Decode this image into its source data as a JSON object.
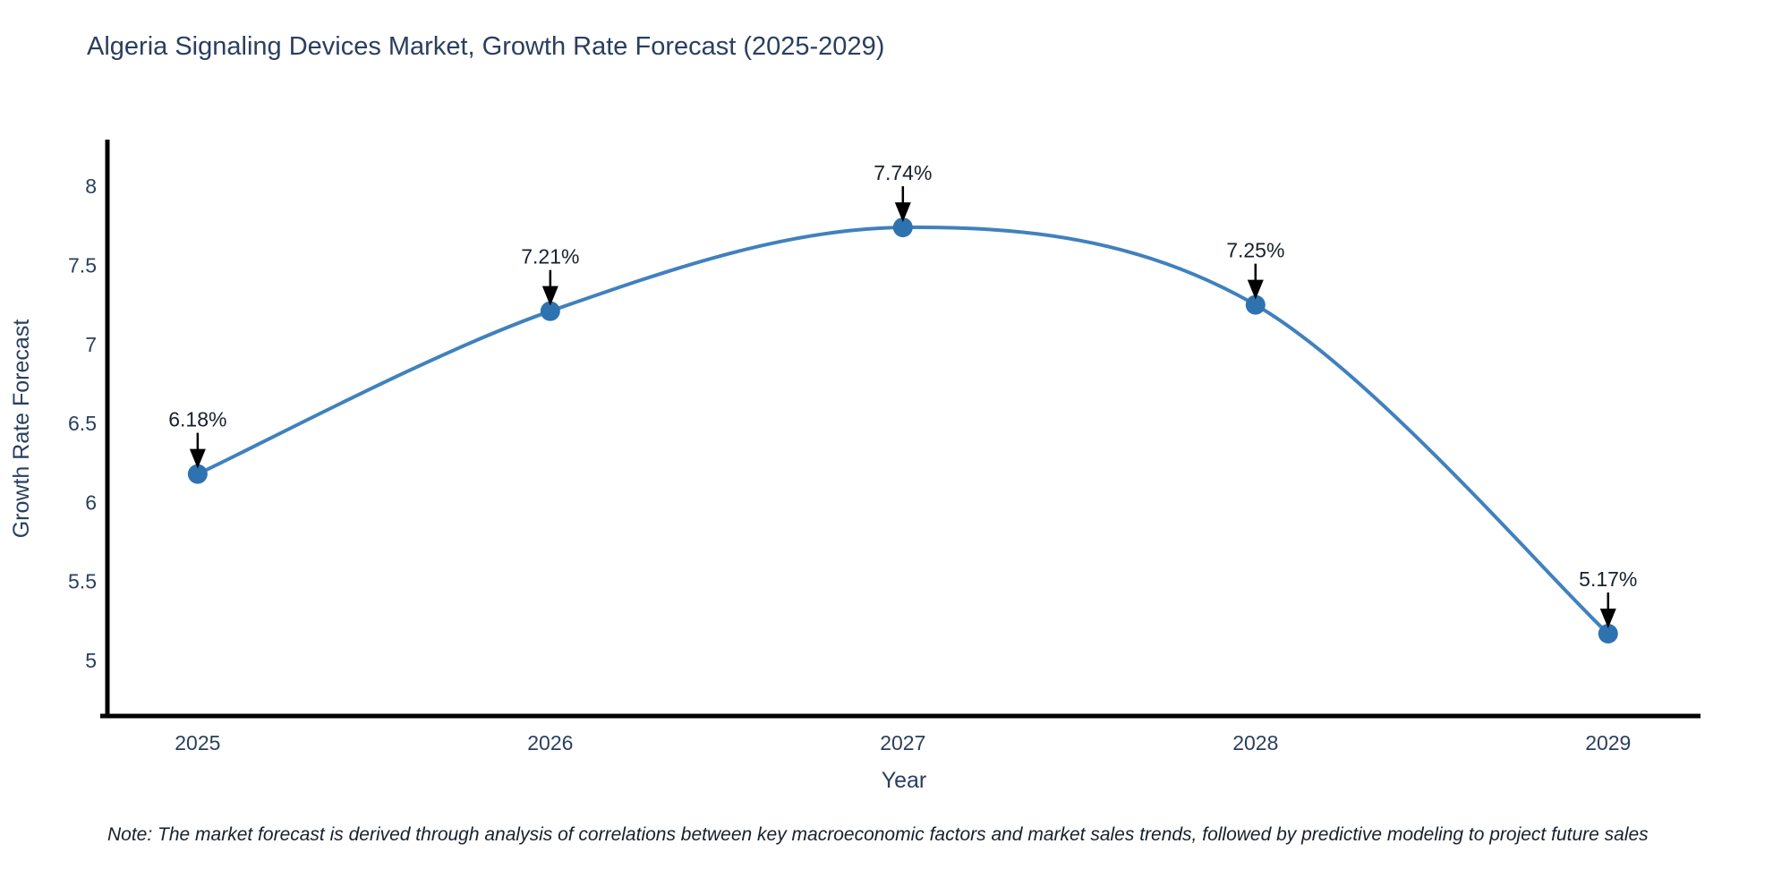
{
  "chart_data": {
    "type": "line",
    "title": "Algeria Signaling Devices Market, Growth Rate Forecast (2025-2029)",
    "xlabel": "Year",
    "ylabel": "Growth Rate Forecast",
    "x": [
      2025,
      2026,
      2027,
      2028,
      2029
    ],
    "series": [
      {
        "name": "Growth Rate Forecast",
        "values": [
          6.18,
          7.21,
          7.74,
          7.25,
          5.17
        ],
        "point_labels": [
          "6.18%",
          "7.21%",
          "7.74%",
          "7.25%",
          "5.17%"
        ]
      }
    ],
    "xticks": [
      "2025",
      "2026",
      "2027",
      "2028",
      "2029"
    ],
    "yticks": [
      "5",
      "5.5",
      "6",
      "6.5",
      "7",
      "7.5",
      "8"
    ],
    "ytick_values": [
      5,
      5.5,
      6,
      6.5,
      7,
      7.5,
      8
    ],
    "xlim": [
      2024.744,
      2029.262
    ],
    "ylim": [
      4.649,
      8.284
    ],
    "line_shape": "spline",
    "grid": false,
    "legend_position": "none",
    "note": "Note: The market forecast is derived through analysis of correlations between key macroeconomic factors and market sales trends, followed by predictive modeling to project future sales",
    "colors": {
      "line": "#4081bd",
      "marker": "#2e73b0",
      "text": "#2a3f5f",
      "axis": "#000000",
      "annotation_arrow": "#000000",
      "annotation_text": "#17202c"
    }
  }
}
